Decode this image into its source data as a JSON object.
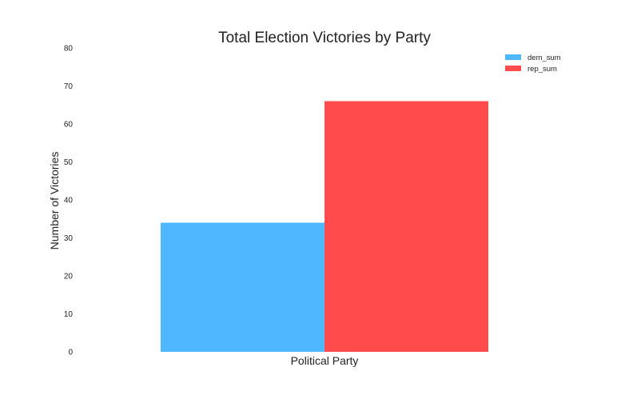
{
  "chart_data": {
    "type": "bar",
    "title": "Total Election Victories by Party",
    "xlabel": "Political Party",
    "ylabel": "Number of Victories",
    "ylim": [
      0,
      80
    ],
    "yticks": [
      0,
      10,
      20,
      30,
      40,
      50,
      60,
      70,
      80
    ],
    "grid": false,
    "legend_position": "top-right",
    "series": [
      {
        "name": "dem_sum",
        "values": [
          34
        ],
        "color": "#4db8ff"
      },
      {
        "name": "rep_sum",
        "values": [
          66
        ],
        "color": "#ff4b4b"
      }
    ]
  }
}
